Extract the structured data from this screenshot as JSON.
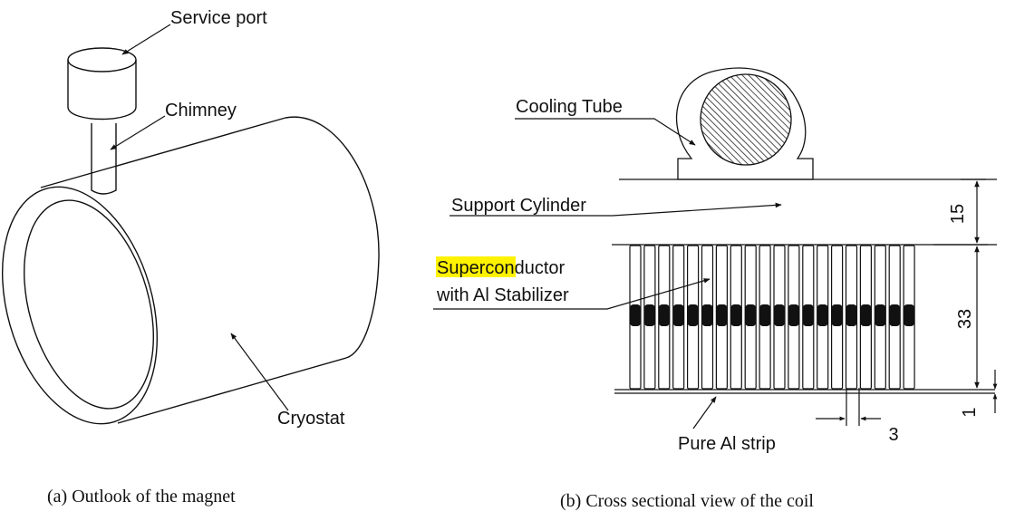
{
  "left_panel": {
    "labels": {
      "service_port": "Service port",
      "chimney": "Chimney",
      "cryostat": "Cryostat"
    },
    "caption": "(a) Outlook of the magnet"
  },
  "right_panel": {
    "labels": {
      "cooling_tube": "Cooling Tube",
      "support_cylinder": "Support Cylinder",
      "superconductor_highlight": "Supercond",
      "superconductor_rest": "uctor",
      "stabilizer": "with Al Stabilizer",
      "pure_al_strip": "Pure Al strip"
    },
    "dimensions": {
      "support_thickness": "15",
      "coil_height": "33",
      "strip_thickness": "1",
      "conductor_width": "3"
    },
    "caption": "(b) Cross sectional view of the coil",
    "conductor_turns": 20,
    "highlight_color": "#fff200"
  }
}
